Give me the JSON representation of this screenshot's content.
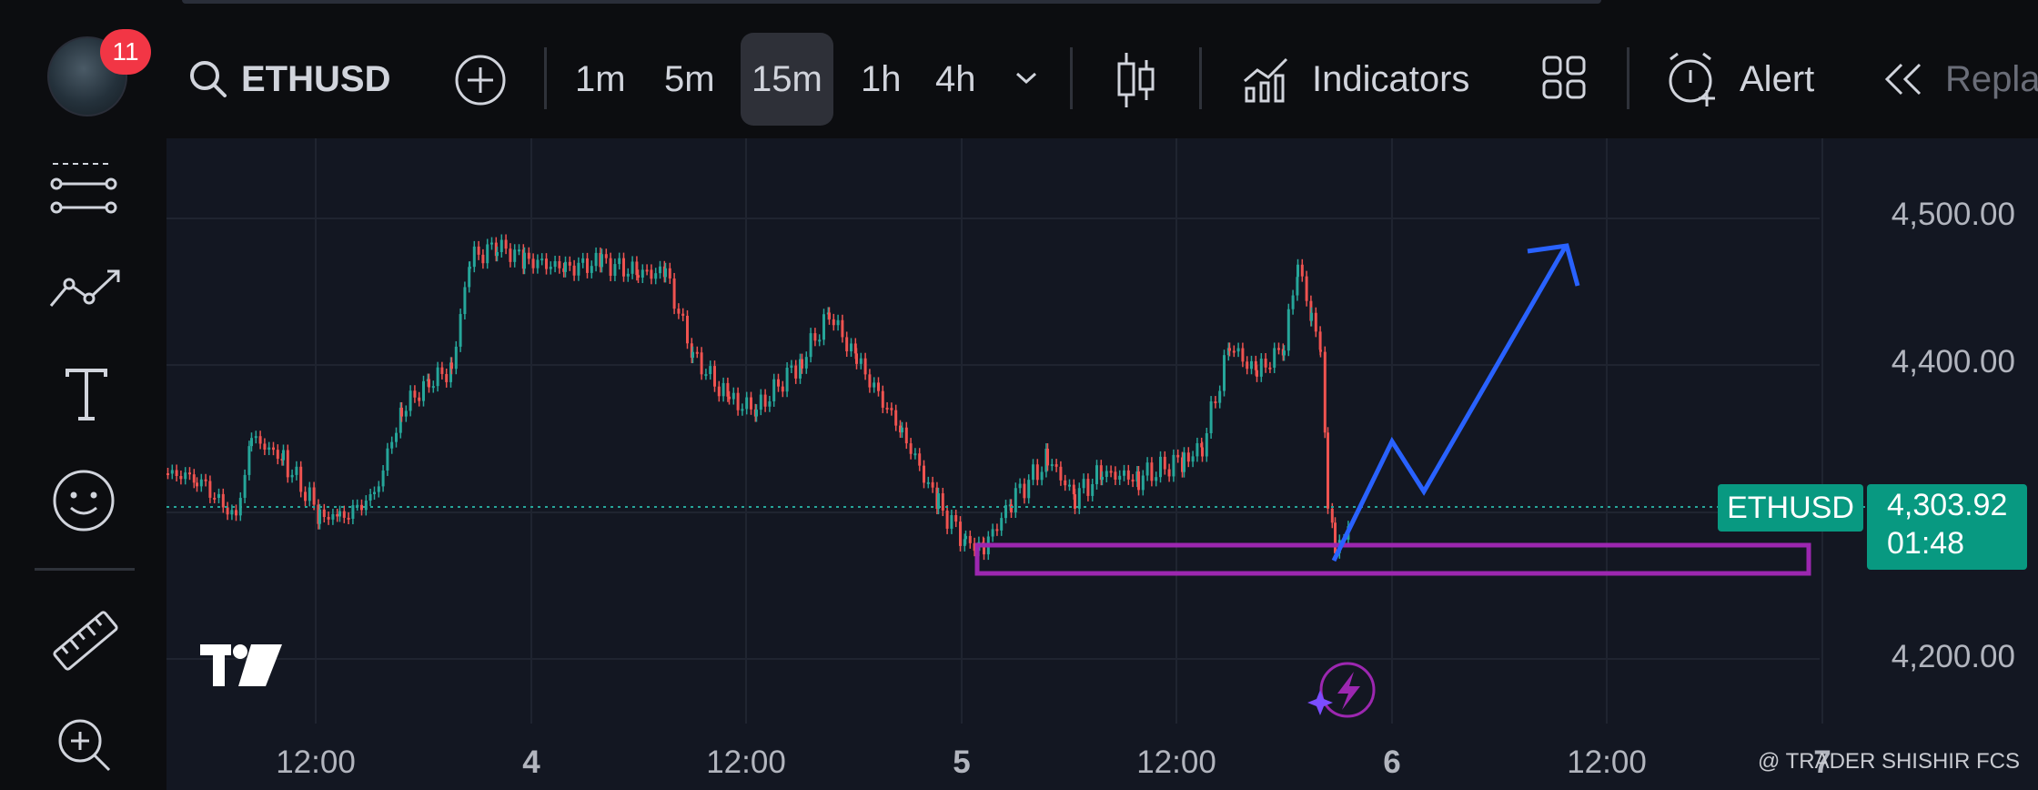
{
  "toolbar": {
    "notification_count": "11",
    "symbol": "ETHUSD",
    "timeframes": [
      "1m",
      "5m",
      "15m",
      "1h",
      "4h"
    ],
    "active_timeframe": "15m",
    "indicators_label": "Indicators",
    "alert_label": "Alert",
    "replay_label": "Replay"
  },
  "chart": {
    "price_axis": [
      "4,500.00",
      "4,400.00",
      "4,200.00"
    ],
    "time_axis": [
      "12:00",
      "4",
      "12:00",
      "5",
      "12:00",
      "6",
      "12:00",
      "7"
    ],
    "current_symbol_tag": "ETHUSD",
    "current_price": "4,303.92",
    "countdown": "01:48",
    "watermark": "@ TRADER SHISHIR FCS",
    "colors": {
      "up": "#26a69a",
      "down": "#ef5350",
      "projection": "#2962ff",
      "zone": "#9c27b0",
      "tag": "#089981"
    }
  }
}
